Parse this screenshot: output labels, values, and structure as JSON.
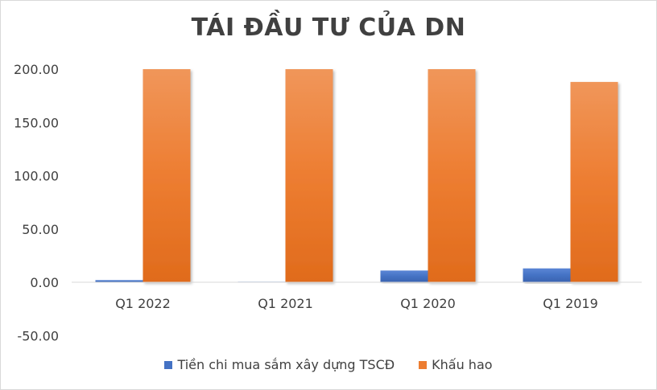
{
  "chart_data": {
    "type": "bar",
    "title": "TÁI ĐẦU TƯ CỦA DN",
    "categories": [
      "Q1 2022",
      "Q1 2021",
      "Q1 2020",
      "Q1 2019"
    ],
    "series": [
      {
        "name": "Tiền chi mua sắm xây dựng TSCĐ",
        "values": [
          2,
          0.5,
          11,
          13
        ],
        "color": "#4472c4"
      },
      {
        "name": "Khấu hao",
        "values": [
          200,
          200,
          200,
          188
        ],
        "color": "#ed7d31"
      }
    ],
    "ylim": [
      -50,
      200
    ],
    "yticks": [
      "200.00",
      "150.00",
      "100.00",
      "50.00",
      "0.00",
      "-50.00"
    ],
    "ytick_values": [
      200,
      150,
      100,
      50,
      0,
      -50
    ],
    "grid": false,
    "legend": "bottom"
  }
}
